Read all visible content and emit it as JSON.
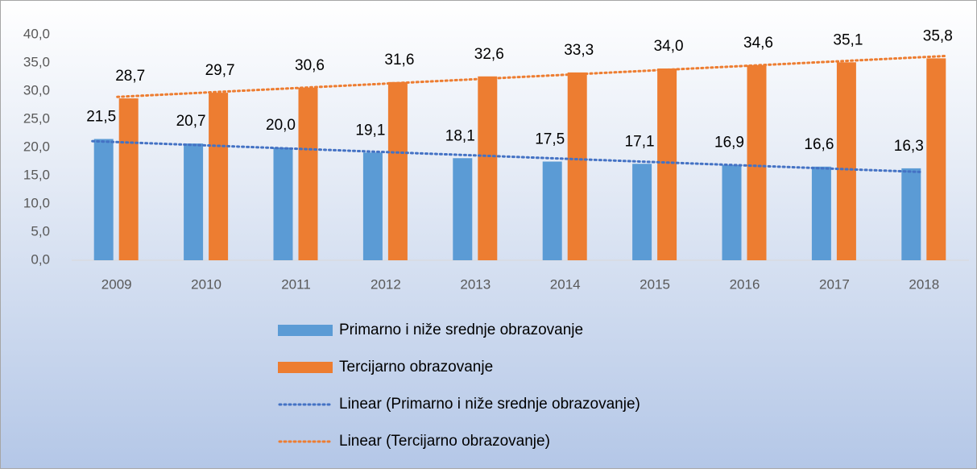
{
  "chart_data": {
    "type": "bar",
    "categories": [
      "2009",
      "2010",
      "2011",
      "2012",
      "2013",
      "2014",
      "2015",
      "2016",
      "2017",
      "2018"
    ],
    "series": [
      {
        "name": "Primarno i niže srednje obrazovanje",
        "color": "#5b9bd5",
        "values": [
          21.5,
          20.7,
          20.0,
          19.1,
          18.1,
          17.5,
          17.1,
          16.9,
          16.6,
          16.3
        ],
        "value_labels": [
          "21,5",
          "20,7",
          "20,0",
          "19,1",
          "18,1",
          "17,5",
          "17,1",
          "16,9",
          "16,6",
          "16,3"
        ]
      },
      {
        "name": "Tercijarno obrazovanje",
        "color": "#ed7d31",
        "values": [
          28.7,
          29.7,
          30.6,
          31.6,
          32.6,
          33.3,
          34.0,
          34.6,
          35.1,
          35.8
        ],
        "value_labels": [
          "28,7",
          "29,7",
          "30,6",
          "31,6",
          "32,6",
          "33,3",
          "34,0",
          "34,6",
          "35,1",
          "35,8"
        ]
      }
    ],
    "trendlines": [
      {
        "name": "Linear (Primarno i niže srednje obrazovanje)",
        "series": 0,
        "color": "#4472c4"
      },
      {
        "name": "Linear (Tercijarno obrazovanje)",
        "series": 1,
        "color": "#ed7d31"
      }
    ],
    "ylim": [
      0,
      40
    ],
    "yticks": [
      {
        "value": 0,
        "label": "0,0"
      },
      {
        "value": 5,
        "label": "5,0"
      },
      {
        "value": 10,
        "label": "10,0"
      },
      {
        "value": 15,
        "label": "15,0"
      },
      {
        "value": 20,
        "label": "20,0"
      },
      {
        "value": 25,
        "label": "25,0"
      },
      {
        "value": 30,
        "label": "30,0"
      },
      {
        "value": 35,
        "label": "35,0"
      },
      {
        "value": 40,
        "label": "40,0"
      }
    ],
    "legend": "bottom"
  }
}
